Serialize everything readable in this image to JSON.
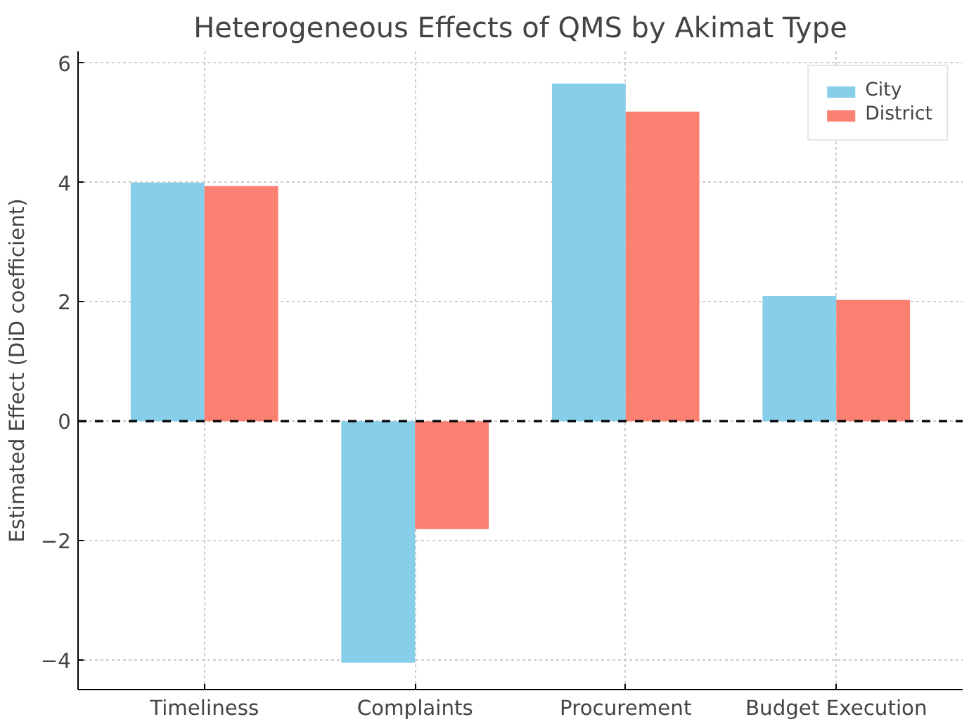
{
  "chart_data": {
    "type": "bar",
    "title": "Heterogeneous Effects of QMS by Akimat Type",
    "ylabel": "Estimated Effect (DiD coefficient)",
    "categories": [
      "Timeliness",
      "Complaints",
      "Procurement",
      "Budget Execution"
    ],
    "series": [
      {
        "name": "City",
        "color": "#87ceeb",
        "values": [
          4.0,
          -4.05,
          5.66,
          2.1
        ]
      },
      {
        "name": "District",
        "color": "#fa8072",
        "values": [
          3.94,
          -1.81,
          5.19,
          2.03
        ]
      }
    ],
    "ylim": [
      -4.5,
      6.2
    ],
    "yticks": [
      {
        "value": -4,
        "label": "−4"
      },
      {
        "value": -2,
        "label": "−2"
      },
      0,
      2,
      4,
      6
    ],
    "ref_lines": [
      {
        "axis": "y",
        "value": 0,
        "label": null,
        "color": "#000000",
        "line_style": "dashed"
      }
    ],
    "grid": true,
    "legend": "top right"
  }
}
